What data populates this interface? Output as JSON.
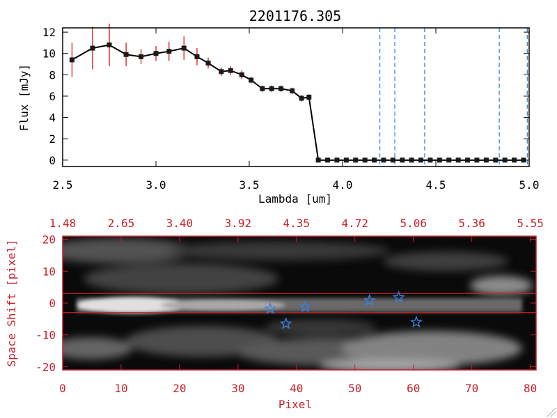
{
  "title": "2201176.305",
  "colors": {
    "line": "#000000",
    "marker": "#1a1a1a",
    "error_bar": "#dd0000",
    "dashed_line": "#2a7fd4",
    "red_frame": "#c8202a",
    "star": "#3a7fe0",
    "background": "#ffffff"
  },
  "chart_data": [
    {
      "type": "line",
      "title": "2201176.305",
      "xlabel": "Lambda [um]",
      "ylabel": "Flux [mJy]",
      "xlim": [
        2.5,
        5.0
      ],
      "ylim": [
        -0.6,
        12.4
      ],
      "x_ticks": [
        2.5,
        3.0,
        3.5,
        4.0,
        4.5,
        5.0
      ],
      "x_tick_labels": [
        "2.5",
        "3.0",
        "3.5",
        "4.0",
        "4.5",
        "5.0"
      ],
      "y_ticks": [
        0,
        2,
        4,
        6,
        8,
        10,
        12
      ],
      "y_tick_labels": [
        "0",
        "2",
        "4",
        "6",
        "8",
        "10",
        "12"
      ],
      "grid": false,
      "series": [
        {
          "x": [
            2.55,
            2.66,
            2.75,
            2.84,
            2.92,
            3.0,
            3.07,
            3.15,
            3.22,
            3.28,
            3.35,
            3.4,
            3.46,
            3.51,
            3.57,
            3.62,
            3.67,
            3.73,
            3.78,
            3.82,
            3.87,
            3.92,
            3.97,
            4.02,
            4.07,
            4.12,
            4.17,
            4.22,
            4.27,
            4.32,
            4.37,
            4.42,
            4.47,
            4.52,
            4.57,
            4.62,
            4.67,
            4.72,
            4.77,
            4.82,
            4.87,
            4.92,
            4.97
          ],
          "y": [
            9.4,
            10.5,
            10.8,
            9.9,
            9.7,
            10.0,
            10.2,
            10.5,
            9.7,
            9.1,
            8.3,
            8.4,
            8.0,
            7.5,
            6.7,
            6.7,
            6.7,
            6.5,
            5.8,
            5.9,
            0.0,
            0.0,
            0.0,
            0.0,
            0.0,
            0.0,
            0.0,
            0.0,
            0.0,
            0.0,
            0.0,
            0.0,
            0.0,
            0.0,
            0.0,
            0.0,
            0.0,
            0.0,
            0.0,
            0.0,
            0.0,
            0.0,
            0.0
          ],
          "err": [
            1.6,
            2.0,
            2.0,
            1.1,
            0.7,
            0.7,
            0.9,
            1.1,
            0.8,
            0.5,
            0.4,
            0.4,
            0.4,
            0.3,
            0.3,
            0.3,
            0.3,
            0.3,
            0.3,
            0.3,
            0,
            0,
            0,
            0,
            0,
            0,
            0,
            0,
            0,
            0,
            0,
            0,
            0,
            0,
            0,
            0,
            0,
            0,
            0,
            0,
            0,
            0,
            0
          ]
        }
      ],
      "vertical_dashed_lines": [
        4.2,
        4.28,
        4.44,
        4.84,
        4.99
      ]
    },
    {
      "type": "heatmap",
      "xlabel": "Pixel",
      "ylabel": "Space Shift [pixel]",
      "xlim": [
        0,
        81
      ],
      "ylim": [
        -21,
        21
      ],
      "x_ticks": [
        0,
        10,
        20,
        30,
        40,
        50,
        60,
        70,
        80
      ],
      "x_tick_labels": [
        "0",
        "10",
        "20",
        "30",
        "40",
        "50",
        "60",
        "70",
        "80"
      ],
      "y_ticks": [
        -20,
        -10,
        0,
        10,
        20
      ],
      "y_tick_labels": [
        "-20",
        "-10",
        "0",
        "10",
        "20"
      ],
      "top_axis_tick_labels": [
        "1.48",
        "2.65",
        "3.40",
        "3.92",
        "4.35",
        "4.72",
        "5.06",
        "5.36",
        "5.55"
      ],
      "extraction_window": [
        -3,
        3
      ],
      "stars": [
        {
          "x": 35.5,
          "y": -1.8
        },
        {
          "x": 38.2,
          "y": -6.5
        },
        {
          "x": 41.5,
          "y": -1.2
        },
        {
          "x": 52.5,
          "y": 0.8
        },
        {
          "x": 57.5,
          "y": 1.8
        },
        {
          "x": 60.5,
          "y": -6.0
        }
      ]
    }
  ]
}
